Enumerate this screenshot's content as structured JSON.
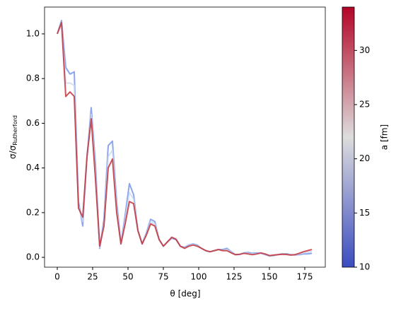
{
  "chart_data": {
    "type": "line",
    "xlabel": "θ [deg]",
    "ylabel": "σ/σ",
    "ylabel_sub": "Rutherford",
    "x": [
      0,
      3,
      6,
      9,
      12,
      15,
      18,
      21,
      24,
      27,
      30,
      33,
      36,
      39,
      42,
      45,
      48,
      51,
      54,
      57,
      60,
      63,
      66,
      69,
      72,
      75,
      78,
      81,
      84,
      87,
      90,
      93,
      96,
      99,
      102,
      105,
      108,
      111,
      114,
      117,
      120,
      123,
      126,
      129,
      132,
      135,
      138,
      141,
      144,
      147,
      150,
      153,
      156,
      159,
      162,
      165,
      168,
      171,
      174,
      177,
      180
    ],
    "series": [
      {
        "color": "#6f8ee8",
        "values": [
          1.0,
          1.06,
          0.85,
          0.82,
          0.83,
          0.25,
          0.14,
          0.45,
          0.67,
          0.42,
          0.04,
          0.17,
          0.5,
          0.52,
          0.25,
          0.06,
          0.19,
          0.33,
          0.28,
          0.12,
          0.06,
          0.11,
          0.17,
          0.16,
          0.08,
          0.05,
          0.07,
          0.085,
          0.08,
          0.05,
          0.045,
          0.055,
          0.06,
          0.055,
          0.04,
          0.03,
          0.025,
          0.03,
          0.035,
          0.035,
          0.04,
          0.025,
          0.012,
          0.013,
          0.02,
          0.022,
          0.018,
          0.02,
          0.018,
          0.012,
          0.006,
          0.008,
          0.012,
          0.016,
          0.016,
          0.012,
          0.01,
          0.012,
          0.015,
          0.015,
          0.018
        ]
      },
      {
        "color": "#c9d7ef",
        "values": [
          1.0,
          1.05,
          0.78,
          0.78,
          0.77,
          0.23,
          0.16,
          0.45,
          0.64,
          0.38,
          0.045,
          0.15,
          0.45,
          0.48,
          0.22,
          0.06,
          0.17,
          0.29,
          0.26,
          0.12,
          0.06,
          0.105,
          0.16,
          0.15,
          0.08,
          0.05,
          0.07,
          0.088,
          0.085,
          0.05,
          0.042,
          0.052,
          0.058,
          0.052,
          0.04,
          0.03,
          0.025,
          0.03,
          0.035,
          0.032,
          0.035,
          0.022,
          0.012,
          0.014,
          0.019,
          0.018,
          0.015,
          0.017,
          0.019,
          0.014,
          0.007,
          0.009,
          0.012,
          0.015,
          0.014,
          0.011,
          0.011,
          0.015,
          0.02,
          0.022,
          0.026
        ]
      },
      {
        "color": "#c0282f",
        "values": [
          1.0,
          1.05,
          0.72,
          0.74,
          0.72,
          0.22,
          0.18,
          0.45,
          0.62,
          0.35,
          0.05,
          0.14,
          0.4,
          0.44,
          0.2,
          0.06,
          0.15,
          0.25,
          0.24,
          0.12,
          0.06,
          0.1,
          0.15,
          0.14,
          0.08,
          0.05,
          0.07,
          0.09,
          0.08,
          0.05,
          0.04,
          0.05,
          0.055,
          0.05,
          0.04,
          0.03,
          0.025,
          0.03,
          0.035,
          0.03,
          0.03,
          0.02,
          0.012,
          0.014,
          0.018,
          0.015,
          0.012,
          0.015,
          0.02,
          0.015,
          0.008,
          0.01,
          0.012,
          0.014,
          0.013,
          0.01,
          0.012,
          0.018,
          0.025,
          0.03,
          0.035
        ]
      }
    ],
    "xlim": [
      -9,
      189.5
    ],
    "xticks": [
      0,
      25,
      50,
      75,
      100,
      125,
      150,
      175
    ],
    "ylim": [
      -0.044,
      1.12
    ],
    "yticks": [
      {
        "value": 0,
        "label": "0.0"
      },
      {
        "value": 0.2,
        "label": "0.2"
      },
      {
        "value": 0.4,
        "label": "0.4"
      },
      {
        "value": 0.6,
        "label": "0.6"
      },
      {
        "value": 0.8,
        "label": "0.8"
      },
      {
        "value": 1,
        "label": "1.0"
      }
    ],
    "colorbar": {
      "label": "a [fm]",
      "lim": [
        10,
        34
      ],
      "ticks": [
        10,
        15,
        20,
        25,
        30
      ],
      "colormap": [
        "#3b4cc0",
        "#dddddd",
        "#b40426"
      ]
    }
  }
}
